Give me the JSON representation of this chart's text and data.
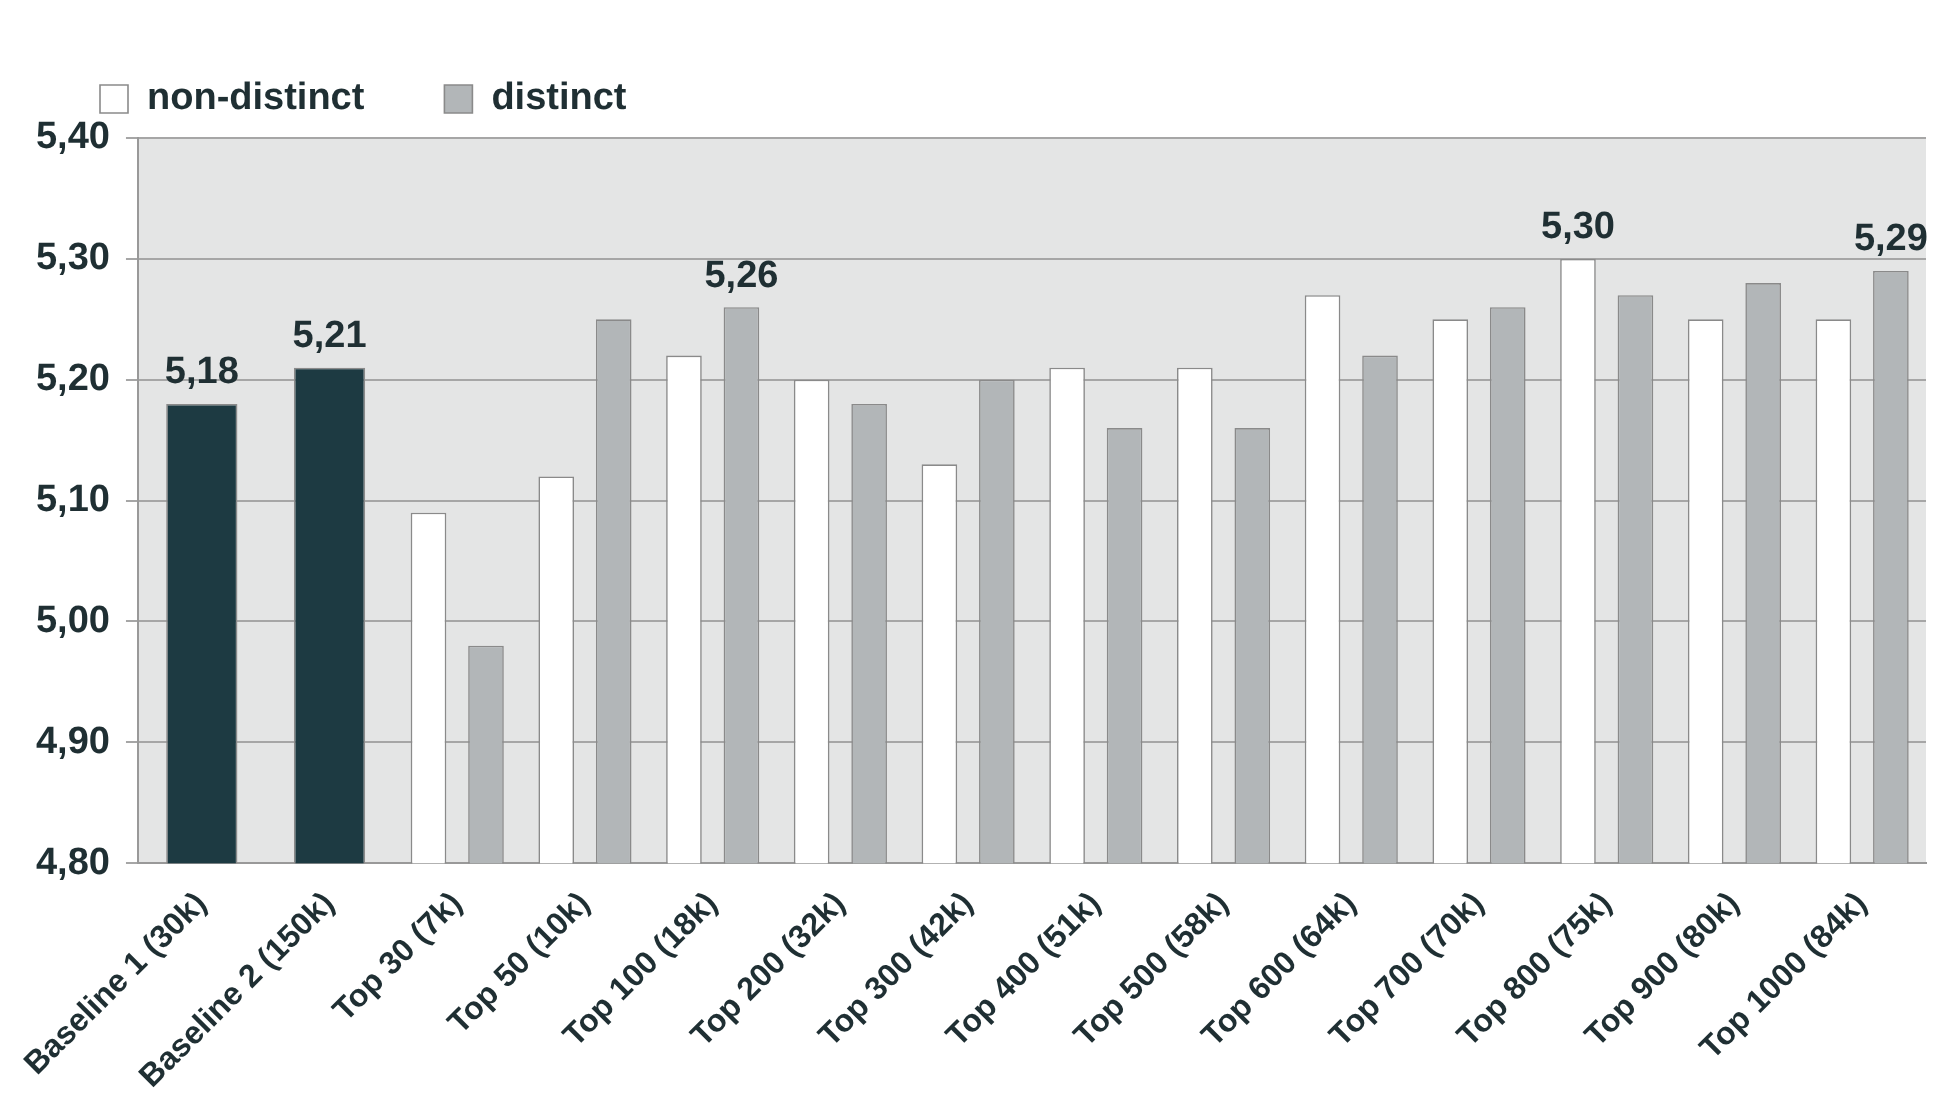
{
  "chart_data": {
    "type": "bar",
    "categories": [
      "Baseline 1 (30k)",
      "Baseline 2 (150k)",
      "Top 30 (7k)",
      "Top 50 (10k)",
      "Top 100 (18k)",
      "Top 200 (32k)",
      "Top 300 (42k)",
      "Top 400 (51k)",
      "Top 500 (58k)",
      "Top 600 (64k)",
      "Top 700 (70k)",
      "Top 800 (75k)",
      "Top 900 (80k)",
      "Top 1000 (84k)"
    ],
    "series": [
      {
        "color": "#1d3a42",
        "values": [
          5.18,
          5.21,
          null,
          null,
          null,
          null,
          null,
          null,
          null,
          null,
          null,
          null,
          null,
          null
        ],
        "value_labels": [
          "5,18",
          "5,21",
          null,
          null,
          null,
          null,
          null,
          null,
          null,
          null,
          null,
          null,
          null,
          null
        ]
      },
      {
        "name": "non-distinct",
        "color": "#ffffff",
        "values": [
          null,
          null,
          5.09,
          5.12,
          5.22,
          5.2,
          5.13,
          5.21,
          5.21,
          5.27,
          5.25,
          5.3,
          5.25,
          5.25
        ],
        "value_labels": [
          null,
          null,
          null,
          null,
          null,
          null,
          null,
          null,
          null,
          null,
          null,
          "5,30",
          null,
          null
        ]
      },
      {
        "name": "distinct",
        "color": "#b2b6b8",
        "values": [
          null,
          null,
          4.98,
          5.25,
          5.26,
          5.18,
          5.2,
          5.16,
          5.16,
          5.22,
          5.26,
          5.27,
          5.28,
          5.29
        ],
        "value_labels": [
          null,
          null,
          null,
          null,
          "5,26",
          null,
          null,
          null,
          null,
          null,
          null,
          null,
          null,
          "5,29"
        ]
      }
    ],
    "ylim": [
      4.8,
      5.4
    ],
    "yticks": [
      {
        "value": 4.8,
        "label": "4,80"
      },
      {
        "value": 4.9,
        "label": "4,90"
      },
      {
        "value": 5.0,
        "label": "5,00"
      },
      {
        "value": 5.1,
        "label": "5,10"
      },
      {
        "value": 5.2,
        "label": "5,20"
      },
      {
        "value": 5.3,
        "label": "5,30"
      },
      {
        "value": 5.4,
        "label": "5,40"
      }
    ],
    "grid": "y",
    "legend": "top left"
  }
}
